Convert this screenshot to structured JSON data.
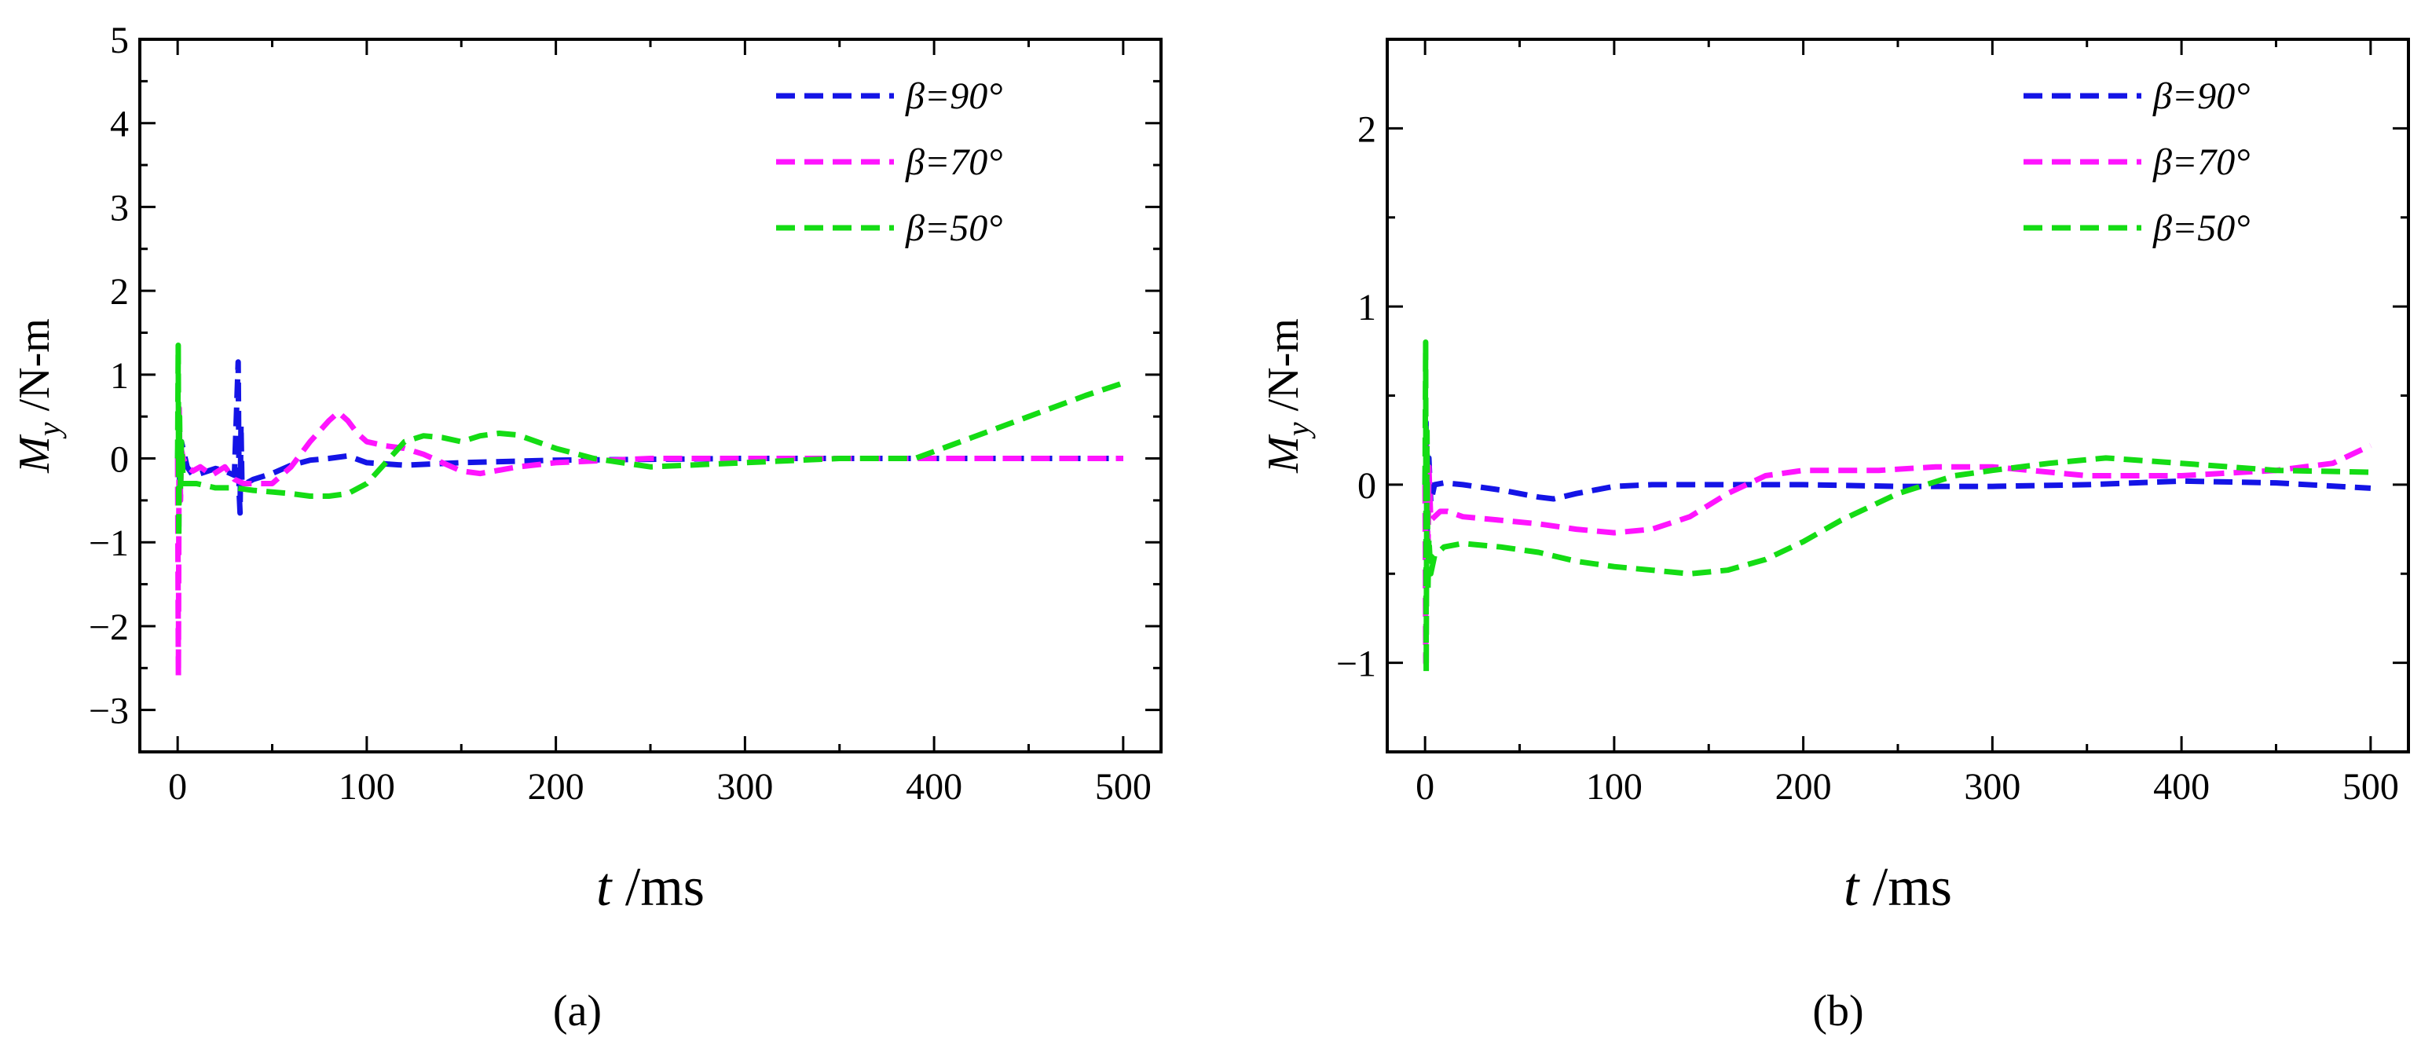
{
  "figure": {
    "panel_labels": [
      "(a)",
      "(b)"
    ]
  },
  "chart_data": [
    {
      "type": "line",
      "panel": "(a)",
      "xlabel_var": "t",
      "xlabel_unit": " /ms",
      "ylabel_var": "M",
      "ylabel_sub": "y",
      "ylabel_unit": " /N-m",
      "xlim": [
        -20,
        520
      ],
      "ylim": [
        -3.5,
        5
      ],
      "xticks": [
        0,
        100,
        200,
        300,
        400,
        500
      ],
      "yticks": [
        -3,
        -2,
        -1,
        0,
        1,
        2,
        3,
        4,
        5
      ],
      "legend_position": "top-right",
      "series": [
        {
          "name": "β=90°",
          "color": "#1414e6",
          "x": [
            0,
            0.5,
            1,
            2,
            3,
            5,
            8,
            12,
            16,
            20,
            25,
            30,
            32,
            32.5,
            33,
            33.5,
            34,
            36,
            40,
            50,
            60,
            70,
            80,
            90,
            100,
            120,
            150,
            200,
            250,
            300,
            350,
            400,
            450,
            500
          ],
          "y": [
            0.0,
            0.4,
            -0.25,
            0.2,
            0.1,
            -0.1,
            -0.2,
            -0.18,
            -0.15,
            -0.12,
            -0.15,
            -0.2,
            1.15,
            -0.4,
            -0.65,
            0.4,
            -0.3,
            -0.3,
            -0.25,
            -0.18,
            -0.08,
            -0.02,
            0.0,
            0.03,
            -0.05,
            -0.08,
            -0.05,
            -0.02,
            -0.01,
            0.0,
            0.0,
            0.0,
            0.0,
            0.0
          ]
        },
        {
          "name": "β=70°",
          "color": "#ff14ff",
          "x": [
            0,
            0.4,
            0.8,
            1.5,
            2,
            3,
            5,
            8,
            12,
            18,
            25,
            30,
            35,
            40,
            50,
            60,
            70,
            80,
            85,
            90,
            95,
            100,
            110,
            120,
            130,
            140,
            150,
            160,
            180,
            200,
            250,
            300,
            400,
            500
          ],
          "y": [
            0.0,
            -2.6,
            0.6,
            -0.5,
            0.1,
            0.0,
            -0.1,
            -0.15,
            -0.1,
            -0.2,
            -0.1,
            -0.25,
            -0.3,
            -0.3,
            -0.3,
            -0.1,
            0.2,
            0.45,
            0.55,
            0.45,
            0.3,
            0.2,
            0.15,
            0.12,
            0.05,
            -0.05,
            -0.15,
            -0.18,
            -0.1,
            -0.05,
            0.0,
            0.0,
            0.0,
            0.0
          ]
        },
        {
          "name": "β=50°",
          "color": "#14dc14",
          "x": [
            0,
            0.3,
            0.6,
            1,
            1.5,
            2,
            3,
            5,
            10,
            20,
            30,
            40,
            50,
            60,
            70,
            80,
            90,
            100,
            110,
            120,
            130,
            140,
            150,
            160,
            170,
            180,
            200,
            220,
            250,
            300,
            350,
            390,
            420,
            450,
            480,
            500
          ],
          "y": [
            0.0,
            1.35,
            -0.95,
            0.5,
            -0.4,
            0.2,
            -0.3,
            -0.3,
            -0.3,
            -0.35,
            -0.35,
            -0.38,
            -0.4,
            -0.42,
            -0.45,
            -0.45,
            -0.42,
            -0.3,
            -0.05,
            0.2,
            0.27,
            0.25,
            0.2,
            0.27,
            0.3,
            0.28,
            0.12,
            0.0,
            -0.1,
            -0.05,
            0.0,
            0.0,
            0.25,
            0.5,
            0.75,
            0.9
          ]
        }
      ]
    },
    {
      "type": "line",
      "panel": "(b)",
      "xlabel_var": "t",
      "xlabel_unit": " /ms",
      "ylabel_var": "M",
      "ylabel_sub": "y",
      "ylabel_unit": " /N-m",
      "xlim": [
        -20,
        520
      ],
      "ylim": [
        -1.5,
        2.5
      ],
      "xticks": [
        0,
        100,
        200,
        300,
        400,
        500
      ],
      "yticks": [
        -1,
        0,
        1,
        2
      ],
      "legend_position": "top-right",
      "series": [
        {
          "name": "β=90°",
          "color": "#1414e6",
          "x": [
            0,
            0.5,
            1,
            2,
            3,
            5,
            10,
            20,
            40,
            60,
            68,
            80,
            100,
            120,
            150,
            200,
            250,
            300,
            350,
            400,
            450,
            500
          ],
          "y": [
            0.0,
            0.35,
            -0.3,
            0.15,
            -0.1,
            0.0,
            0.01,
            0.0,
            -0.03,
            -0.07,
            -0.08,
            -0.05,
            -0.01,
            0.0,
            0.0,
            0.0,
            -0.01,
            -0.01,
            0.0,
            0.02,
            0.01,
            -0.02
          ]
        },
        {
          "name": "β=70°",
          "color": "#ff14ff",
          "x": [
            0,
            0.4,
            0.8,
            1.5,
            2,
            3,
            5,
            8,
            12,
            20,
            40,
            60,
            80,
            100,
            120,
            140,
            160,
            180,
            200,
            240,
            270,
            300,
            350,
            400,
            450,
            480,
            500
          ],
          "y": [
            0.0,
            -1.0,
            0.3,
            -0.4,
            0.1,
            -0.2,
            -0.18,
            -0.15,
            -0.15,
            -0.18,
            -0.2,
            -0.22,
            -0.25,
            -0.27,
            -0.25,
            -0.18,
            -0.05,
            0.05,
            0.08,
            0.08,
            0.1,
            0.1,
            0.05,
            0.05,
            0.08,
            0.12,
            0.22
          ]
        },
        {
          "name": "β=50°",
          "color": "#14dc14",
          "x": [
            0,
            0.3,
            0.6,
            1,
            1.5,
            2,
            3,
            5,
            10,
            20,
            40,
            60,
            80,
            100,
            120,
            140,
            160,
            180,
            200,
            220,
            250,
            280,
            300,
            330,
            360,
            400,
            450,
            500
          ],
          "y": [
            0.0,
            0.8,
            -1.05,
            0.3,
            -0.6,
            -0.3,
            -0.5,
            -0.4,
            -0.35,
            -0.33,
            -0.35,
            -0.38,
            -0.43,
            -0.46,
            -0.48,
            -0.5,
            -0.48,
            -0.42,
            -0.32,
            -0.2,
            -0.05,
            0.05,
            0.08,
            0.12,
            0.15,
            0.12,
            0.08,
            0.07
          ]
        }
      ]
    }
  ]
}
